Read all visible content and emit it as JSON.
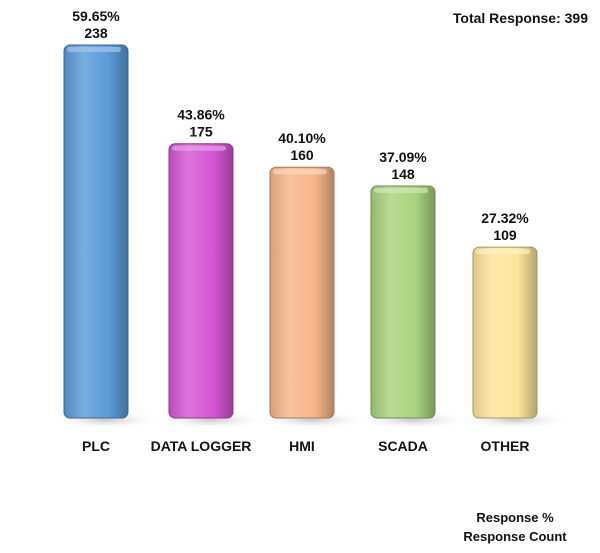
{
  "chart_data": {
    "type": "bar",
    "total_response": "Total Response: 399",
    "categories": [
      "PLC",
      "DATA LOGGER",
      "HMI",
      "SCADA",
      "OTHER"
    ],
    "series": [
      {
        "name": "Response %",
        "values": [
          59.65,
          43.86,
          40.1,
          37.09,
          27.32
        ],
        "labels": [
          "59.65%",
          "43.86%",
          "40.10%",
          "37.09%",
          "27.32%"
        ]
      },
      {
        "name": "Response Count",
        "values": [
          238,
          175,
          160,
          148,
          109
        ],
        "labels": [
          "238",
          "175",
          "160",
          "148",
          "109"
        ]
      }
    ],
    "colors": [
      "#5B9BD8",
      "#D455D4",
      "#F7B68A",
      "#A8D37E",
      "#FDE49A"
    ],
    "ylim": [
      0,
      238
    ],
    "grid": false,
    "legend_position": "bottom-right",
    "legend": [
      "Response %",
      "Response Count"
    ]
  }
}
